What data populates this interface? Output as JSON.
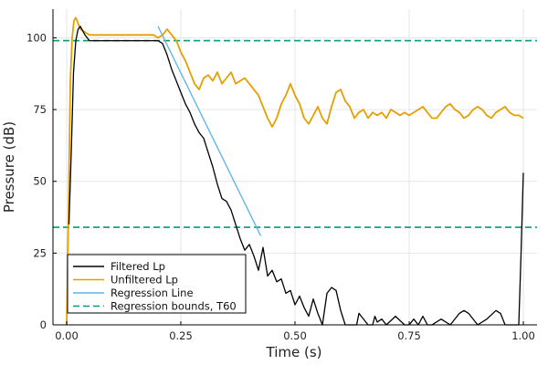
{
  "chart_data": {
    "type": "line",
    "title": "",
    "xlabel": "Time (s)",
    "ylabel": "Pressure (dB)",
    "xlim": [
      -0.03,
      1.03
    ],
    "ylim": [
      0,
      110
    ],
    "xticks": [
      0,
      0.25,
      0.5,
      0.75,
      1.0
    ],
    "xtick_labels": [
      "0.00",
      "0.25",
      "0.50",
      "0.75",
      "1.00"
    ],
    "yticks": [
      0,
      25,
      50,
      75,
      100
    ],
    "ytick_labels": [
      "0",
      "25",
      "50",
      "75",
      "100"
    ],
    "grid": true,
    "legend_position": "bottom-left",
    "series": [
      {
        "name": "Filtered Lp",
        "color": "#000000",
        "style": "solid",
        "x": [
          0.005,
          0.01,
          0.015,
          0.02,
          0.025,
          0.03,
          0.04,
          0.05,
          0.06,
          0.08,
          0.1,
          0.12,
          0.14,
          0.16,
          0.18,
          0.2,
          0.21,
          0.22,
          0.23,
          0.24,
          0.25,
          0.26,
          0.27,
          0.28,
          0.29,
          0.3,
          0.31,
          0.32,
          0.33,
          0.34,
          0.35,
          0.36,
          0.37,
          0.38,
          0.39,
          0.4,
          0.41,
          0.42,
          0.43,
          0.44,
          0.45,
          0.46,
          0.47,
          0.48,
          0.49,
          0.5,
          0.51,
          0.52,
          0.53,
          0.54,
          0.55,
          0.56,
          0.57,
          0.58,
          0.59,
          0.6,
          0.61,
          0.615,
          0.625,
          0.635,
          0.64,
          0.66,
          0.67,
          0.675,
          0.68,
          0.69,
          0.7,
          0.72,
          0.74,
          0.75,
          0.76,
          0.77,
          0.78,
          0.79,
          0.8,
          0.82,
          0.84,
          0.86,
          0.87,
          0.88,
          0.9,
          0.92,
          0.94,
          0.95,
          0.96,
          0.97,
          0.98,
          0.99,
          0.995,
          1.0
        ],
        "y": [
          35,
          60,
          88,
          99,
          103,
          104,
          101,
          99,
          99,
          99,
          99,
          99,
          99,
          99,
          99,
          99,
          98,
          94,
          89,
          85,
          81,
          77,
          74,
          70,
          67,
          65,
          60,
          55,
          49,
          44,
          43,
          40,
          35,
          30,
          26,
          28,
          24,
          19,
          27,
          17,
          19,
          15,
          16,
          11,
          12,
          7,
          10,
          6,
          3,
          9,
          4,
          0,
          11,
          13,
          12,
          5,
          0,
          0,
          0,
          0,
          4,
          0,
          0,
          3,
          1,
          2,
          0,
          3,
          0,
          0,
          2,
          0,
          3,
          0,
          0,
          2,
          0,
          4,
          5,
          4,
          0,
          2,
          5,
          4,
          0,
          0,
          0,
          0,
          25,
          53
        ]
      },
      {
        "name": "Unfiltered Lp",
        "color": "#E69F00",
        "style": "solid",
        "x": [
          0.0,
          0.004,
          0.008,
          0.012,
          0.016,
          0.02,
          0.025,
          0.03,
          0.04,
          0.05,
          0.06,
          0.08,
          0.1,
          0.12,
          0.14,
          0.16,
          0.18,
          0.19,
          0.2,
          0.21,
          0.22,
          0.23,
          0.24,
          0.25,
          0.26,
          0.27,
          0.28,
          0.29,
          0.3,
          0.31,
          0.32,
          0.33,
          0.34,
          0.35,
          0.36,
          0.37,
          0.38,
          0.39,
          0.4,
          0.41,
          0.42,
          0.43,
          0.44,
          0.45,
          0.46,
          0.47,
          0.48,
          0.49,
          0.5,
          0.51,
          0.52,
          0.53,
          0.54,
          0.55,
          0.56,
          0.57,
          0.58,
          0.59,
          0.6,
          0.61,
          0.62,
          0.63,
          0.64,
          0.65,
          0.66,
          0.67,
          0.68,
          0.69,
          0.7,
          0.71,
          0.72,
          0.73,
          0.74,
          0.75,
          0.76,
          0.77,
          0.78,
          0.79,
          0.8,
          0.81,
          0.82,
          0.83,
          0.84,
          0.85,
          0.86,
          0.87,
          0.88,
          0.89,
          0.9,
          0.91,
          0.92,
          0.93,
          0.94,
          0.95,
          0.96,
          0.97,
          0.98,
          0.99,
          1.0
        ],
        "y": [
          0,
          40,
          85,
          100,
          106,
          107,
          105,
          103,
          102,
          101,
          101,
          101,
          101,
          101,
          101,
          101,
          101,
          101,
          100,
          101,
          103,
          101,
          99,
          95,
          92,
          88,
          84,
          82,
          86,
          87,
          85,
          88,
          84,
          86,
          88,
          84,
          85,
          86,
          84,
          82,
          80,
          76,
          72,
          69,
          72,
          77,
          80,
          84,
          80,
          77,
          72,
          70,
          73,
          76,
          72,
          70,
          76,
          81,
          82,
          78,
          76,
          72,
          74,
          75,
          72,
          74,
          73,
          74,
          72,
          75,
          74,
          73,
          74,
          73,
          74,
          75,
          76,
          74,
          72,
          72,
          74,
          76,
          77,
          75,
          74,
          72,
          73,
          75,
          76,
          75,
          73,
          72,
          74,
          75,
          76,
          74,
          73,
          73,
          72
        ]
      },
      {
        "name": "Regression Line",
        "color": "#56B4E9",
        "style": "solid",
        "x": [
          0.2,
          0.425
        ],
        "y": [
          104,
          31
        ]
      },
      {
        "name": "Regression bounds, T60",
        "color": "#009E73",
        "style": "dashed",
        "hlines": [
          99,
          34
        ]
      }
    ]
  }
}
